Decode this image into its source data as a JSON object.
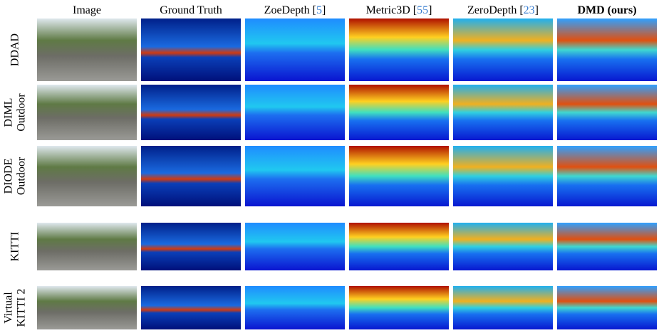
{
  "columns": [
    {
      "prefix": "Image"
    },
    {
      "prefix": "Ground Truth"
    },
    {
      "prefix": "ZoeDepth [",
      "ref": "5",
      "suffix": "]"
    },
    {
      "prefix": "Metric3D [",
      "ref": "55",
      "suffix": "]"
    },
    {
      "prefix": "ZeroDepth [",
      "ref": "23",
      "suffix": "]"
    },
    {
      "prefix": "DMD (ours)"
    }
  ],
  "rows": [
    {
      "lines": [
        "DDAD"
      ]
    },
    {
      "lines": [
        "DIML",
        "Outdoor"
      ]
    },
    {
      "lines": [
        "DIODE",
        "Outdoor"
      ]
    },
    {
      "lines": [
        "KITTI"
      ]
    },
    {
      "lines": [
        "Virtual",
        "KITTI 2"
      ]
    }
  ]
}
